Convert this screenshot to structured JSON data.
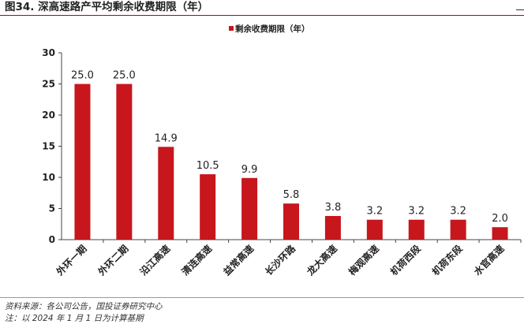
{
  "figure": {
    "title": "图34. 深高速路产平均剩余收费期限（年）",
    "source": "资料来源：各公司公告，国投证券研究中心",
    "note": "注：以 2024 年 1 月 1 日为计算基期"
  },
  "chart_data": {
    "type": "bar",
    "categories": [
      "外环一期",
      "外环二期",
      "沿江高速",
      "清连高速",
      "益常高速",
      "长沙环路",
      "龙大高速",
      "梅观高速",
      "机荷西段",
      "机荷东段",
      "水官高速"
    ],
    "series": [
      {
        "name": "剩余收费期限（年）",
        "values": [
          25.0,
          25.0,
          14.9,
          10.5,
          9.9,
          5.8,
          3.8,
          3.2,
          3.2,
          3.2,
          2.0
        ],
        "color": "#c8161d"
      }
    ],
    "value_labels": [
      "25.0",
      "25.0",
      "14.9",
      "10.5",
      "9.9",
      "5.8",
      "3.8",
      "3.2",
      "3.2",
      "3.2",
      "2.0"
    ],
    "y_ticks": [
      "0",
      "5",
      "10",
      "15",
      "20",
      "25",
      "30"
    ],
    "ylim": [
      0,
      30
    ],
    "legend_position": "top-center",
    "grid": false
  }
}
